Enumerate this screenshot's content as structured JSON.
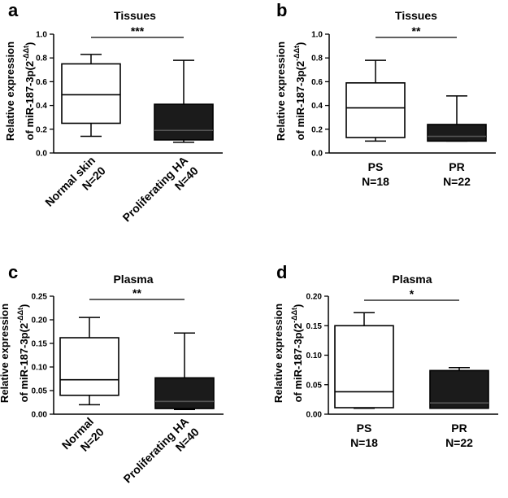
{
  "figure": {
    "panels": [
      "a",
      "b",
      "c",
      "d"
    ],
    "ylabel_line1": "Relative expression",
    "ylabel_line2": "of miR-187-3p(2",
    "ylabel_exponent": "-ΔΔt",
    "ylabel_close": ")"
  },
  "colors": {
    "box_white": "#ffffff",
    "box_dark": "#1b1b1b",
    "line": "#000000"
  },
  "chart_data": [
    {
      "id": "a",
      "type": "box",
      "panel_letter": "a",
      "title": "Tissues",
      "ylim": [
        0,
        1.0
      ],
      "yticks": [
        0.0,
        0.2,
        0.4,
        0.6,
        0.8,
        1.0
      ],
      "ytick_labels": [
        "0.0",
        "0.2",
        "0.4",
        "0.6",
        "0.8",
        "1.0"
      ],
      "significance": "***",
      "label_style": "rotated",
      "series": [
        {
          "name": "Normal skin",
          "n_label": "N=20",
          "fill": "white",
          "min": 0.14,
          "q1": 0.25,
          "median": 0.49,
          "q3": 0.75,
          "max": 0.83
        },
        {
          "name": "Proliferating HA",
          "n_label": "N=40",
          "fill": "dark",
          "min": 0.09,
          "q1": 0.11,
          "median": 0.19,
          "q3": 0.41,
          "max": 0.78
        }
      ]
    },
    {
      "id": "b",
      "type": "box",
      "panel_letter": "b",
      "title": "Tissues",
      "ylim": [
        0,
        1.0
      ],
      "yticks": [
        0.0,
        0.2,
        0.4,
        0.6,
        0.8,
        1.0
      ],
      "ytick_labels": [
        "0.0",
        "0.2",
        "0.4",
        "0.6",
        "0.8",
        "1.0"
      ],
      "significance": "**",
      "label_style": "horizontal",
      "series": [
        {
          "name": "PS",
          "n_label": "N=18",
          "fill": "white",
          "min": 0.1,
          "q1": 0.13,
          "median": 0.38,
          "q3": 0.59,
          "max": 0.78
        },
        {
          "name": "PR",
          "n_label": "N=22",
          "fill": "dark",
          "min": 0.1,
          "q1": 0.1,
          "median": 0.14,
          "q3": 0.24,
          "max": 0.48
        }
      ]
    },
    {
      "id": "c",
      "type": "box",
      "panel_letter": "c",
      "title": "Plasma",
      "ylim": [
        0,
        0.25
      ],
      "yticks": [
        0.0,
        0.05,
        0.1,
        0.15,
        0.2,
        0.25
      ],
      "ytick_labels": [
        "0.00",
        "0.05",
        "0.10",
        "0.15",
        "0.20",
        "0.25"
      ],
      "significance": "**",
      "label_style": "rotated",
      "series": [
        {
          "name": "Normal",
          "n_label": "N=20",
          "fill": "white",
          "min": 0.02,
          "q1": 0.04,
          "median": 0.073,
          "q3": 0.162,
          "max": 0.205
        },
        {
          "name": "Proliferating HA",
          "n_label": "N=40",
          "fill": "dark",
          "min": 0.01,
          "q1": 0.012,
          "median": 0.027,
          "q3": 0.077,
          "max": 0.172
        }
      ]
    },
    {
      "id": "d",
      "type": "box",
      "panel_letter": "d",
      "title": "Plasma",
      "ylim": [
        0,
        0.2
      ],
      "yticks": [
        0.0,
        0.05,
        0.1,
        0.15,
        0.2
      ],
      "ytick_labels": [
        "0.00",
        "0.05",
        "0.10",
        "0.15",
        "0.20"
      ],
      "significance": "*",
      "label_style": "horizontal",
      "series": [
        {
          "name": "PS",
          "n_label": "N=18",
          "fill": "white",
          "min": 0.01,
          "q1": 0.011,
          "median": 0.038,
          "q3": 0.15,
          "max": 0.172
        },
        {
          "name": "PR",
          "n_label": "N=22",
          "fill": "dark",
          "min": 0.01,
          "q1": 0.01,
          "median": 0.019,
          "q3": 0.074,
          "max": 0.079
        }
      ]
    }
  ]
}
